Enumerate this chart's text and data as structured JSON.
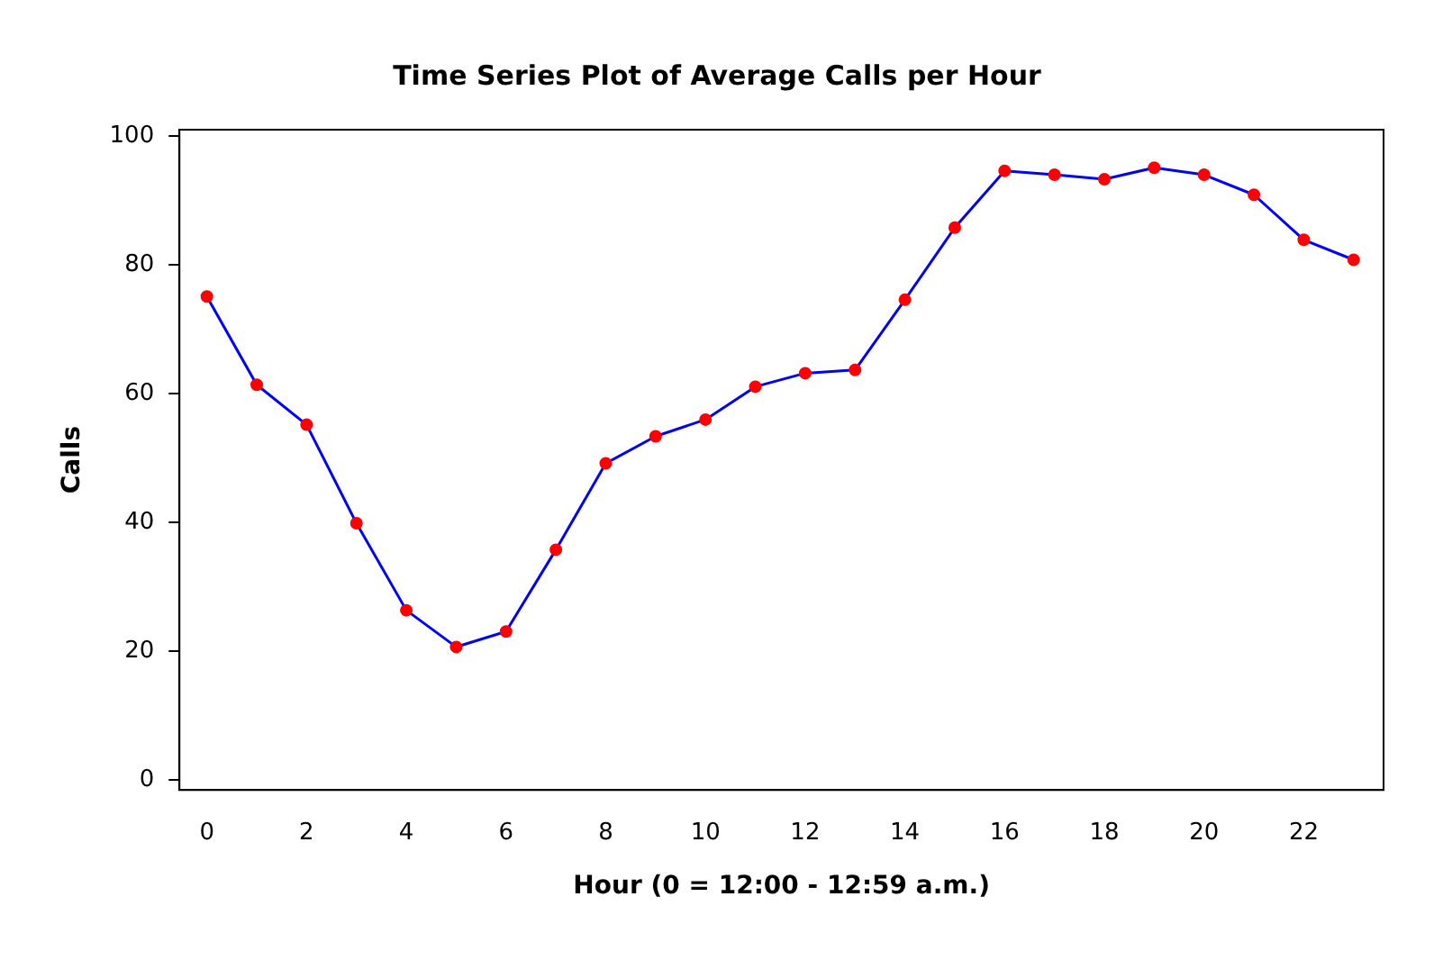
{
  "chart_data": {
    "type": "line",
    "title": "Time Series Plot of Average Calls per Hour",
    "xlabel": "Hour (0 = 12:00 - 12:59 a.m.)",
    "ylabel": "Calls",
    "x": [
      0,
      1,
      2,
      3,
      4,
      5,
      6,
      7,
      8,
      9,
      10,
      11,
      12,
      13,
      14,
      15,
      16,
      17,
      18,
      19,
      20,
      21,
      22,
      23
    ],
    "series": [
      {
        "color": "#0000ff",
        "values": [
          75.1,
          61.4,
          55.2,
          39.9,
          26.4,
          20.7,
          23.1,
          35.8,
          49.2,
          53.4,
          56,
          61.1,
          63.2,
          63.7,
          74.6,
          85.8,
          94.6,
          94,
          93.3,
          95.1,
          94,
          90.9,
          83.9,
          80.8
        ]
      },
      {
        "type": "scatter",
        "color": "#ff0000",
        "values": [
          75.1,
          61.4,
          55.2,
          39.9,
          26.4,
          20.7,
          23.1,
          35.8,
          49.2,
          53.4,
          56,
          61.1,
          63.2,
          63.7,
          74.6,
          85.8,
          94.6,
          94,
          93.3,
          95.1,
          94,
          90.9,
          83.9,
          80.8
        ]
      }
    ],
    "line_style": "solid",
    "grid": false,
    "legend": false,
    "xlim": [
      -0.55,
      23.6
    ],
    "xticks": [
      0,
      2,
      4,
      6,
      8,
      10,
      12,
      14,
      16,
      18,
      20,
      22
    ],
    "ylim": [
      -1.5,
      101
    ],
    "yticks": [
      0,
      20,
      40,
      60,
      80,
      100
    ]
  }
}
